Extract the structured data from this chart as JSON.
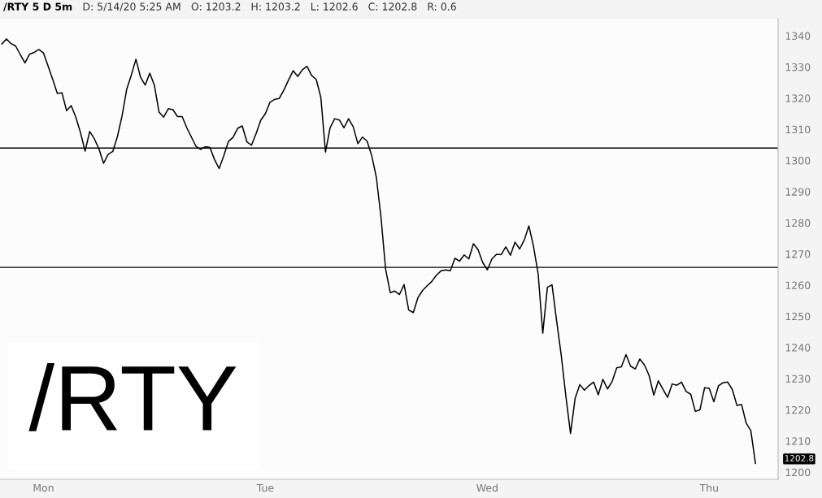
{
  "chart_data": {
    "type": "line",
    "title": "/RTY 5 D 5m",
    "annotations": [
      "D: 5/14/20 5:25 AM",
      "O: 1203.2",
      "H: 1203.2",
      "L: 1202.6",
      "C: 1202.8",
      "R: 0.6",
      "/RTY",
      "1202.8"
    ],
    "categories": [
      null,
      null,
      null,
      null,
      null,
      null,
      null,
      null,
      null,
      "Mon",
      null,
      null,
      null,
      null,
      null,
      null,
      null,
      null,
      null,
      null,
      null,
      null,
      null,
      null,
      null,
      null,
      null,
      null,
      null,
      null,
      null,
      null,
      null,
      null,
      null,
      null,
      null,
      null,
      null,
      null,
      null,
      null,
      null,
      null,
      null,
      null,
      null,
      null,
      null,
      null,
      null,
      null,
      null,
      null,
      null,
      null,
      null,
      "Tue",
      null,
      null,
      null,
      null,
      null,
      null,
      null,
      null,
      null,
      null,
      null,
      null,
      null,
      null,
      null,
      null,
      null,
      null,
      null,
      null,
      null,
      null,
      null,
      null,
      null,
      null,
      null,
      null,
      null,
      null,
      null,
      null,
      null,
      null,
      null,
      null,
      null,
      null,
      null,
      null,
      null,
      null,
      null,
      null,
      null,
      null,
      null,
      "Wed",
      null,
      null,
      null,
      null,
      null,
      null,
      null,
      null,
      null,
      null,
      null,
      null,
      null,
      null,
      null,
      null,
      null,
      null,
      null,
      null,
      null,
      null,
      null,
      null,
      null,
      null,
      null,
      null,
      null,
      null,
      null,
      null,
      null,
      null,
      null,
      null,
      null,
      null,
      null,
      null,
      null,
      null,
      null,
      null,
      null,
      null,
      null,
      "Thu",
      null,
      null,
      null,
      null,
      null,
      null,
      null,
      null,
      null,
      null
    ],
    "series": [
      {
        "color": "#000000",
        "values": [
          1337.4,
          1339.0,
          1337.5,
          1336.7,
          1333.9,
          1331.3,
          1334.1,
          1334.7,
          1335.6,
          1334.5,
          1330.3,
          1326.0,
          1321.5,
          1321.7,
          1316.0,
          1317.6,
          1313.9,
          1309.0,
          1303.0,
          1309.3,
          1307.0,
          1303.7,
          1299.1,
          1302.0,
          1302.9,
          1307.7,
          1314.3,
          1322.8,
          1327.4,
          1332.5,
          1326.7,
          1324.2,
          1328.0,
          1324.1,
          1315.5,
          1313.9,
          1316.6,
          1316.3,
          1314.1,
          1314.1,
          1310.5,
          1307.5,
          1304.5,
          1303.6,
          1304.4,
          1304.2,
          1300.3,
          1297.4,
          1301.5,
          1306.1,
          1307.4,
          1310.3,
          1311.1,
          1306.0,
          1304.9,
          1308.7,
          1312.9,
          1315.0,
          1318.7,
          1319.6,
          1319.9,
          1322.6,
          1325.8,
          1328.8,
          1327.0,
          1329.1,
          1330.2,
          1327.3,
          1326.0,
          1320.2,
          1302.7,
          1310.5,
          1313.4,
          1313.0,
          1310.5,
          1313.4,
          1310.8,
          1305.4,
          1307.5,
          1306.2,
          1301.6,
          1294.6,
          1281.9,
          1265.2,
          1257.6,
          1258.1,
          1257.0,
          1260.2,
          1252.0,
          1251.2,
          1256.0,
          1258.3,
          1259.8,
          1261.2,
          1263.2,
          1264.6,
          1264.9,
          1264.6,
          1268.6,
          1267.7,
          1269.7,
          1268.4,
          1273.3,
          1271.4,
          1267.3,
          1264.9,
          1268.4,
          1269.9,
          1269.8,
          1272.3,
          1269.6,
          1273.8,
          1271.6,
          1274.5,
          1279.0,
          1272.4,
          1263.6,
          1244.6,
          1259.3,
          1260.1,
          1248.5,
          1237.4,
          1224.3,
          1212.4,
          1223.7,
          1228.1,
          1226.3,
          1227.8,
          1228.9,
          1224.8,
          1229.8,
          1226.7,
          1229.1,
          1233.5,
          1233.8,
          1237.7,
          1234.0,
          1233.1,
          1236.3,
          1234.4,
          1231.0,
          1224.7,
          1229.3,
          1226.6,
          1224.0,
          1228.3,
          1227.9,
          1228.9,
          1225.9,
          1225.0,
          1219.5,
          1220.0,
          1227.1,
          1226.9,
          1222.6,
          1227.7,
          1228.7,
          1228.9,
          1226.5,
          1221.4,
          1221.7,
          1215.7,
          1213.3,
          1202.8
        ]
      }
    ],
    "ylim": [
      1197.7,
      1345.5
    ],
    "yticks": [
      1200,
      1210,
      1220,
      1230,
      1240,
      1250,
      1260,
      1270,
      1280,
      1290,
      1300,
      1310,
      1320,
      1330,
      1340
    ],
    "ref_lines": [
      {
        "axis": "y",
        "value": 1304,
        "color": "#000000"
      },
      {
        "axis": "y",
        "value": 1265.7,
        "color": "#000000"
      }
    ],
    "grid": false,
    "legend": false,
    "marker": "none",
    "line_style": "solid"
  }
}
